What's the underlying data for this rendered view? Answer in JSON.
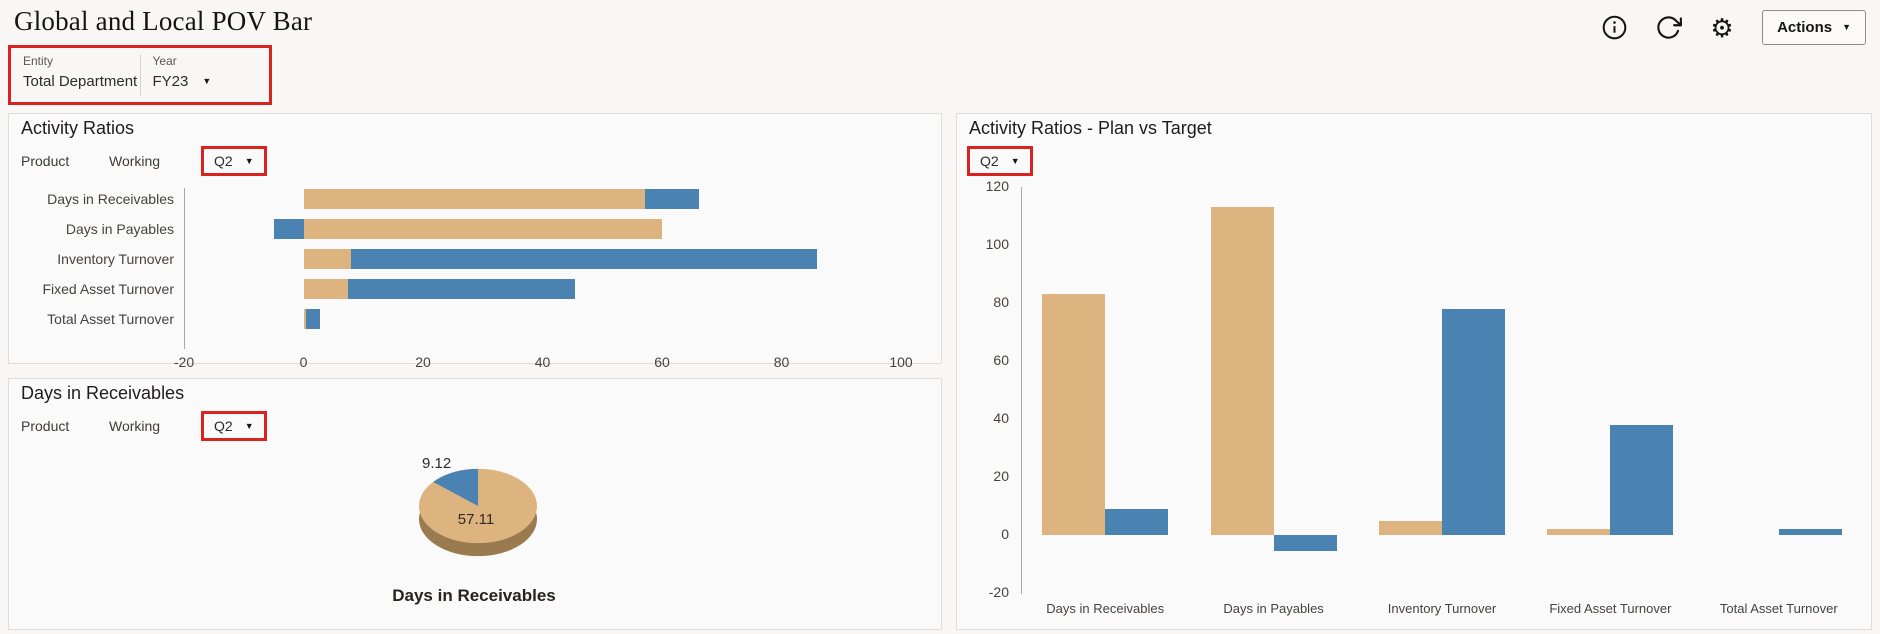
{
  "header": {
    "title": "Global and Local POV Bar",
    "actions_label": "Actions"
  },
  "pov": {
    "entity_label": "Entity",
    "entity_value": "Total Department",
    "year_label": "Year",
    "year_value": "FY23"
  },
  "panels": {
    "activity": {
      "title": "Activity Ratios",
      "pov_dim1": "Product",
      "pov_dim2": "Working",
      "quarter": "Q2"
    },
    "receivables": {
      "title": "Days in Receivables",
      "pov_dim1": "Product",
      "pov_dim2": "Working",
      "quarter": "Q2",
      "caption": "Days in Receivables"
    },
    "plan": {
      "title": "Activity Ratios - Plan vs Target",
      "quarter": "Q2"
    }
  },
  "colors": {
    "series_tan": "#DDB480",
    "series_blue": "#4A82B2",
    "pie_side": "#9A7B4F",
    "highlight_red": "#D8231E",
    "axis_line": "#ACA8A4"
  },
  "chart_data": [
    {
      "id": "activity-ratios",
      "type": "bar",
      "orientation": "horizontal",
      "stacked": true,
      "title": "Activity Ratios",
      "categories": [
        "Days in Receivables",
        "Days in Payables",
        "Inventory Turnover",
        "Fixed Asset Turnover",
        "Total Asset Turnover"
      ],
      "series": [
        {
          "name": "tan",
          "color": "#DDB480",
          "values": [
            57.11,
            60,
            8,
            7.5,
            0.5
          ]
        },
        {
          "name": "blue",
          "color": "#4A82B2",
          "values": [
            9.12,
            -5,
            78,
            38,
            2.3
          ]
        }
      ],
      "xlim": [
        -20,
        100
      ],
      "xticks": [
        -20,
        0,
        20,
        40,
        60,
        80,
        100
      ],
      "grid": false,
      "legend": "none"
    },
    {
      "id": "days-in-receivables-pie",
      "type": "pie",
      "title": "Days in Receivables",
      "labels": [
        "9.12",
        "57.11"
      ],
      "values": [
        9.12,
        57.11
      ],
      "colors": [
        "#4A82B2",
        "#DDB480"
      ]
    },
    {
      "id": "plan-vs-target",
      "type": "bar",
      "orientation": "vertical",
      "stacked": false,
      "title": "Activity Ratios - Plan vs Target",
      "categories": [
        "Days in Receivables",
        "Days in Payables",
        "Inventory Turnover",
        "Fixed Asset Turnover",
        "Total Asset Turnover"
      ],
      "series": [
        {
          "name": "tan",
          "color": "#DDB480",
          "values": [
            83,
            113,
            5,
            2,
            0
          ]
        },
        {
          "name": "blue",
          "color": "#4A82B2",
          "values": [
            9,
            -5.5,
            78,
            38,
            2
          ]
        }
      ],
      "ylim": [
        -20,
        120
      ],
      "yticks": [
        -20,
        0,
        20,
        40,
        60,
        80,
        100,
        120
      ],
      "grid": false,
      "legend": "none"
    }
  ]
}
